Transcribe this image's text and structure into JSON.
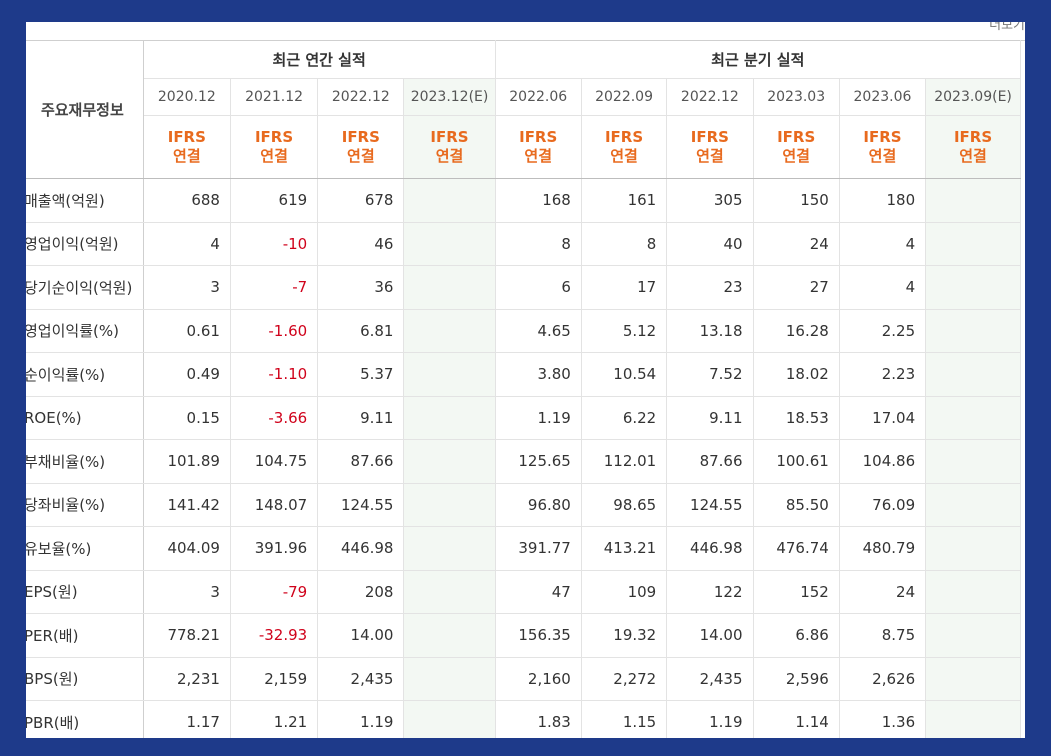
{
  "top_right": "더보기",
  "header": {
    "row_title": "주요재무정보",
    "annual_group": "최근 연간 실적",
    "quarter_group": "최근 분기 실적",
    "annual_periods": [
      "2020.12",
      "2021.12",
      "2022.12",
      "2023.12(E)"
    ],
    "quarter_periods": [
      "2022.06",
      "2022.09",
      "2022.12",
      "2023.03",
      "2023.06",
      "2023.09(E)"
    ],
    "ifrs_line1": "IFRS",
    "ifrs_line2": "연결"
  },
  "rows": [
    {
      "label": "매출액(억원)",
      "values": [
        "688",
        "619",
        "678",
        "",
        "168",
        "161",
        "305",
        "150",
        "180",
        ""
      ]
    },
    {
      "label": "영업이익(억원)",
      "values": [
        "4",
        "-10",
        "46",
        "",
        "8",
        "8",
        "40",
        "24",
        "4",
        ""
      ]
    },
    {
      "label": "당기순이익(억원)",
      "values": [
        "3",
        "-7",
        "36",
        "",
        "6",
        "17",
        "23",
        "27",
        "4",
        ""
      ]
    },
    {
      "label": "영업이익률(%)",
      "values": [
        "0.61",
        "-1.60",
        "6.81",
        "",
        "4.65",
        "5.12",
        "13.18",
        "16.28",
        "2.25",
        ""
      ]
    },
    {
      "label": "순이익률(%)",
      "values": [
        "0.49",
        "-1.10",
        "5.37",
        "",
        "3.80",
        "10.54",
        "7.52",
        "18.02",
        "2.23",
        ""
      ]
    },
    {
      "label": "ROE(%)",
      "values": [
        "0.15",
        "-3.66",
        "9.11",
        "",
        "1.19",
        "6.22",
        "9.11",
        "18.53",
        "17.04",
        ""
      ]
    },
    {
      "label": "부채비율(%)",
      "values": [
        "101.89",
        "104.75",
        "87.66",
        "",
        "125.65",
        "112.01",
        "87.66",
        "100.61",
        "104.86",
        ""
      ]
    },
    {
      "label": "당좌비율(%)",
      "values": [
        "141.42",
        "148.07",
        "124.55",
        "",
        "96.80",
        "98.65",
        "124.55",
        "85.50",
        "76.09",
        ""
      ]
    },
    {
      "label": "유보율(%)",
      "values": [
        "404.09",
        "391.96",
        "446.98",
        "",
        "391.77",
        "413.21",
        "446.98",
        "476.74",
        "480.79",
        ""
      ]
    },
    {
      "label": "EPS(원)",
      "values": [
        "3",
        "-79",
        "208",
        "",
        "47",
        "109",
        "122",
        "152",
        "24",
        ""
      ]
    },
    {
      "label": "PER(배)",
      "values": [
        "778.21",
        "-32.93",
        "14.00",
        "",
        "156.35",
        "19.32",
        "14.00",
        "6.86",
        "8.75",
        ""
      ]
    },
    {
      "label": "BPS(원)",
      "values": [
        "2,231",
        "2,159",
        "2,435",
        "",
        "2,160",
        "2,272",
        "2,435",
        "2,596",
        "2,626",
        ""
      ]
    },
    {
      "label": "PBR(배)",
      "values": [
        "1.17",
        "1.21",
        "1.19",
        "",
        "1.83",
        "1.15",
        "1.19",
        "1.14",
        "1.36",
        ""
      ]
    }
  ],
  "colors": {
    "background": "#1e3a8a",
    "negative": "#d0021b",
    "ifrs": "#e86a1e",
    "estimate_bg": "#f3f8f3"
  }
}
